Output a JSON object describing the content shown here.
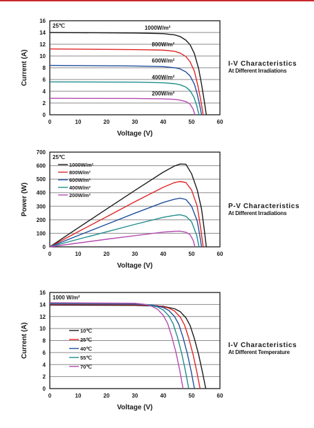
{
  "chart_data": [
    {
      "type": "line",
      "annotation": "25℃",
      "xlabel": "Voltage  (V)",
      "ylabel": "Current (A)",
      "xlim": [
        0,
        60
      ],
      "ylim": [
        0,
        16
      ],
      "xticks": [
        "0",
        "10",
        "20",
        "30",
        "40",
        "50",
        "60"
      ],
      "yticks": [
        "0",
        "2",
        "4",
        "6",
        "8",
        "10",
        "12",
        "14",
        "16"
      ],
      "grid": "horizontal",
      "series": [
        {
          "name": "1000W/m²",
          "color": "#1a1a1a",
          "x": [
            0,
            30,
            40,
            44,
            46,
            48,
            49.5,
            51,
            52.5,
            53.5,
            54.5,
            55.2
          ],
          "y": [
            14.0,
            13.9,
            13.8,
            13.6,
            13.3,
            12.7,
            11.9,
            10.4,
            7.8,
            5.2,
            2.3,
            0
          ]
        },
        {
          "name": "800W/m²",
          "color": "#e02424",
          "x": [
            0,
            30,
            40,
            44,
            46,
            48,
            49.5,
            51,
            52.2,
            53.2,
            54.1
          ],
          "y": [
            11.2,
            11.1,
            11.0,
            10.8,
            10.5,
            9.9,
            9.0,
            7.4,
            5.0,
            2.6,
            0
          ]
        },
        {
          "name": "600W/m²",
          "color": "#1f4e9c",
          "x": [
            0,
            30,
            40,
            44,
            46,
            48,
            49.5,
            51,
            52.0,
            52.8,
            53.5
          ],
          "y": [
            8.4,
            8.3,
            8.2,
            8.0,
            7.8,
            7.3,
            6.6,
            5.2,
            3.5,
            1.8,
            0
          ]
        },
        {
          "name": "400W/m²",
          "color": "#1e8c8c",
          "x": [
            0,
            30,
            40,
            44,
            46,
            48,
            49.5,
            50.8,
            51.8,
            52.6
          ],
          "y": [
            5.6,
            5.55,
            5.45,
            5.3,
            5.1,
            4.7,
            4.1,
            3.0,
            1.6,
            0
          ]
        },
        {
          "name": "200W/m²",
          "color": "#b44ab0",
          "x": [
            0,
            30,
            40,
            44,
            46,
            48,
            49.5,
            50.5,
            51.2
          ],
          "y": [
            2.8,
            2.78,
            2.72,
            2.62,
            2.5,
            2.25,
            1.8,
            1.0,
            0
          ]
        }
      ]
    },
    {
      "type": "line",
      "annotation": "25℃",
      "xlabel": "Voltage  (V)",
      "ylabel": "Power (W)",
      "xlim": [
        0,
        60
      ],
      "ylim": [
        0,
        700
      ],
      "xticks": [
        "0",
        "10",
        "20",
        "30",
        "40",
        "50",
        "60"
      ],
      "yticks": [
        "0",
        "100",
        "200",
        "300",
        "400",
        "500",
        "600",
        "700"
      ],
      "grid": "horizontal",
      "legend": "top-left",
      "series": [
        {
          "name": "1000W/m²",
          "color": "#1a1a1a",
          "x": [
            0,
            10,
            20,
            30,
            40,
            44,
            46,
            48,
            50,
            52,
            53.5,
            54.5,
            55.2
          ],
          "y": [
            0,
            140,
            279,
            417,
            552,
            598,
            612,
            610,
            540,
            420,
            280,
            125,
            0
          ]
        },
        {
          "name": "800W/m²",
          "color": "#e02424",
          "x": [
            0,
            10,
            20,
            30,
            40,
            44,
            46,
            48,
            50,
            52,
            53.2,
            54.1
          ],
          "y": [
            0,
            112,
            222,
            333,
            440,
            475,
            483,
            475,
            420,
            300,
            140,
            0
          ]
        },
        {
          "name": "600W/m²",
          "color": "#1f4e9c",
          "x": [
            0,
            10,
            20,
            30,
            40,
            44,
            46,
            48,
            50,
            52,
            52.8,
            53.5
          ],
          "y": [
            0,
            84,
            166,
            249,
            328,
            352,
            359,
            350,
            300,
            190,
            95,
            0
          ]
        },
        {
          "name": "400W/m²",
          "color": "#1e8c8c",
          "x": [
            0,
            10,
            20,
            30,
            40,
            44,
            46,
            48,
            50,
            51.8,
            52.6
          ],
          "y": [
            0,
            56,
            111,
            166,
            218,
            233,
            237,
            226,
            185,
            85,
            0
          ]
        },
        {
          "name": "200W/m²",
          "color": "#b44ab0",
          "x": [
            0,
            10,
            20,
            30,
            40,
            44,
            46,
            48,
            49.5,
            50.5,
            51.2
          ],
          "y": [
            0,
            28,
            56,
            83,
            109,
            115,
            116,
            108,
            90,
            50,
            0
          ]
        }
      ]
    },
    {
      "type": "line",
      "annotation": "1000 W/m²",
      "xlabel": "Voltage  (V)",
      "ylabel": "Current (A)",
      "xlim": [
        0,
        60
      ],
      "ylim": [
        0,
        16
      ],
      "xticks": [
        "0",
        "10",
        "20",
        "30",
        "40",
        "50",
        "60"
      ],
      "yticks": [
        "0",
        "2",
        "4",
        "6",
        "8",
        "10",
        "12",
        "14",
        "16"
      ],
      "grid": "horizontal",
      "legend": "middle-left",
      "series": [
        {
          "name": "10℃",
          "color": "#1a1a1a",
          "x": [
            0,
            30,
            40,
            44,
            46,
            48,
            49.5,
            51,
            52.5,
            53.8,
            55.0
          ],
          "y": [
            13.9,
            13.85,
            13.7,
            13.3,
            12.8,
            11.8,
            10.5,
            8.3,
            5.6,
            2.8,
            0
          ]
        },
        {
          "name": "25℃",
          "color": "#e02424",
          "x": [
            0,
            30,
            38,
            42,
            44,
            46,
            47.5,
            49,
            50.5,
            51.8,
            53.0
          ],
          "y": [
            14.0,
            13.95,
            13.8,
            13.4,
            12.9,
            11.9,
            10.6,
            8.4,
            5.7,
            2.9,
            0
          ]
        },
        {
          "name": "40℃",
          "color": "#1f4e9c",
          "x": [
            0,
            30,
            36,
            40,
            42,
            44,
            45.5,
            47,
            48.5,
            49.8,
            51.0
          ],
          "y": [
            14.1,
            14.05,
            13.9,
            13.5,
            13.0,
            12.0,
            10.7,
            8.5,
            5.8,
            3.0,
            0
          ]
        },
        {
          "name": "55℃",
          "color": "#1e8c8c",
          "x": [
            0,
            30,
            34,
            38,
            40,
            42,
            43.5,
            45,
            46.5,
            47.8,
            49.0
          ],
          "y": [
            14.2,
            14.15,
            14.0,
            13.6,
            13.1,
            12.1,
            10.8,
            8.6,
            5.9,
            3.0,
            0
          ]
        },
        {
          "name": "70℃",
          "color": "#b44ab0",
          "x": [
            0,
            30,
            33,
            36,
            38,
            40,
            41.5,
            43,
            44.5,
            45.8,
            47.0
          ],
          "y": [
            14.3,
            14.2,
            14.05,
            13.7,
            13.2,
            12.2,
            10.9,
            8.7,
            6.0,
            3.1,
            0
          ]
        }
      ]
    }
  ],
  "side_titles": [
    {
      "line1": "I-V Characteristics",
      "line2": "At Different Irradiations"
    },
    {
      "line1": "P-V Characteristics",
      "line2": "At Different Irradiations"
    },
    {
      "line1": "I-V Characteristics",
      "line2": "At Different Temperature"
    }
  ]
}
